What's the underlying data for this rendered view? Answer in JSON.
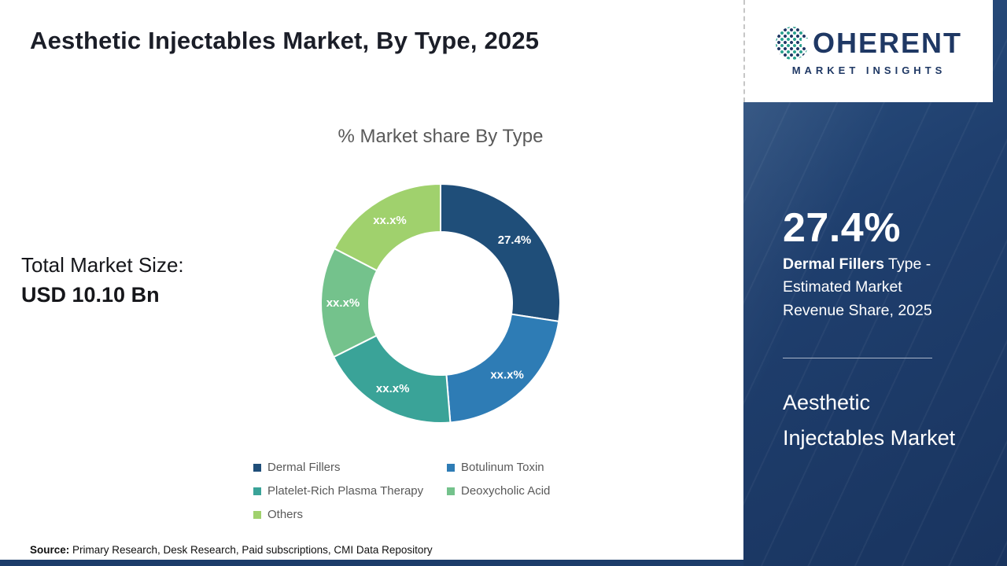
{
  "header": {
    "title": "Aesthetic Injectables Market, By Type, 2025"
  },
  "logo": {
    "brand_initial": "C",
    "brand_rest": "OHERENT",
    "tagline": "MARKET INSIGHTS"
  },
  "summary": {
    "label": "Total Market Size:",
    "value": "USD 10.10 Bn"
  },
  "chart_data": {
    "type": "pie",
    "donut": true,
    "title": "% Market share By Type",
    "categories": [
      "Dermal Fillers",
      "Botulinum Toxin",
      "Platelet-Rich Plasma Therapy",
      "Deoxycholic Acid",
      "Others"
    ],
    "values": [
      27.4,
      21.3,
      18.9,
      15.0,
      17.4
    ],
    "labels": [
      "27.4%",
      "xx.x%",
      "xx.x%",
      "xx.x%",
      "xx.x%"
    ],
    "colors": [
      "#1f4e79",
      "#2e7cb5",
      "#3aa398",
      "#74c28c",
      "#a0d16d"
    ],
    "legend_position": "bottom"
  },
  "side_panel": {
    "stat_value": "27.4%",
    "stat_highlight": "Dermal Fillers",
    "stat_text": " Type - Estimated Market Revenue Share, 2025",
    "market_title": "Aesthetic Injectables Market"
  },
  "footer": {
    "source_label": "Source:",
    "source_text": " Primary Research, Desk Research, Paid subscriptions, CMI Data Repository"
  }
}
